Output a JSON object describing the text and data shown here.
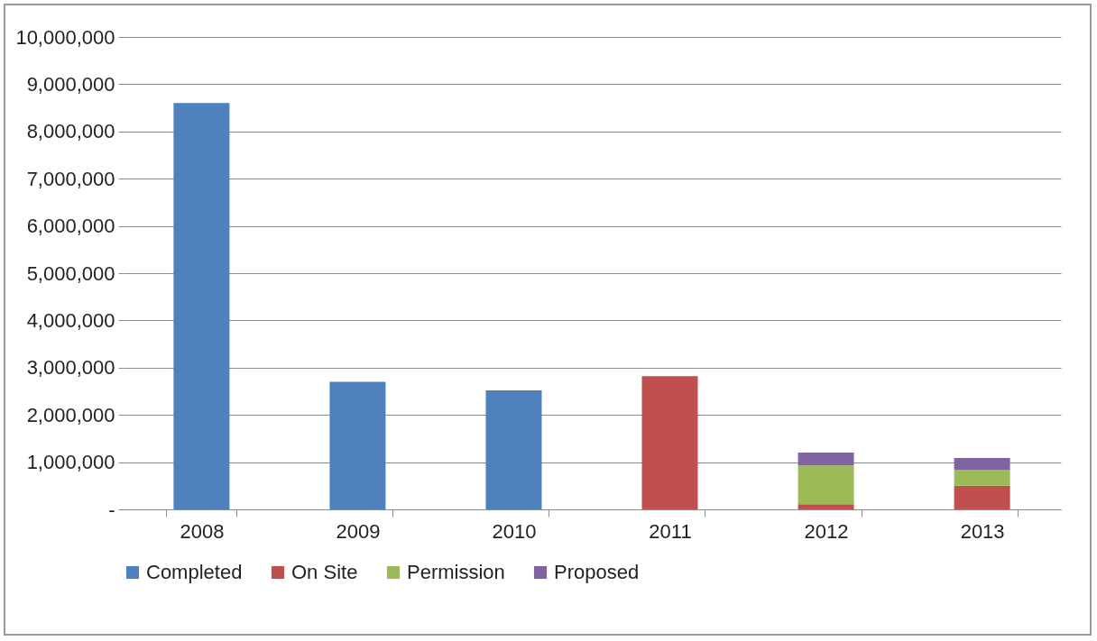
{
  "chart_data": {
    "type": "bar",
    "stacked": true,
    "categories": [
      "2008",
      "2009",
      "2010",
      "2011",
      "2012",
      "2013"
    ],
    "series": [
      {
        "name": "Completed",
        "color": "#4f81bd",
        "values": [
          8600000,
          2700000,
          2520000,
          null,
          null,
          null
        ]
      },
      {
        "name": "On Site",
        "color": "#c0504d",
        "values": [
          null,
          null,
          null,
          2820000,
          110000,
          500000
        ]
      },
      {
        "name": "Permission",
        "color": "#9bbb59",
        "values": [
          null,
          null,
          null,
          null,
          820000,
          340000
        ]
      },
      {
        "name": "Proposed",
        "color": "#8064a2",
        "values": [
          null,
          null,
          null,
          null,
          270000,
          250000
        ]
      }
    ],
    "ylim": [
      0,
      10000000
    ],
    "yticks": [
      {
        "value": 0,
        "label": "-"
      },
      {
        "value": 1000000,
        "label": "1,000,000"
      },
      {
        "value": 2000000,
        "label": "2,000,000"
      },
      {
        "value": 3000000,
        "label": "3,000,000"
      },
      {
        "value": 4000000,
        "label": "4,000,000"
      },
      {
        "value": 5000000,
        "label": "5,000,000"
      },
      {
        "value": 6000000,
        "label": "6,000,000"
      },
      {
        "value": 7000000,
        "label": "7,000,000"
      },
      {
        "value": 8000000,
        "label": "8,000,000"
      },
      {
        "value": 9000000,
        "label": "9,000,000"
      },
      {
        "value": 10000000,
        "label": "10,000,000"
      }
    ],
    "grid": "y",
    "legend": "bottom"
  }
}
